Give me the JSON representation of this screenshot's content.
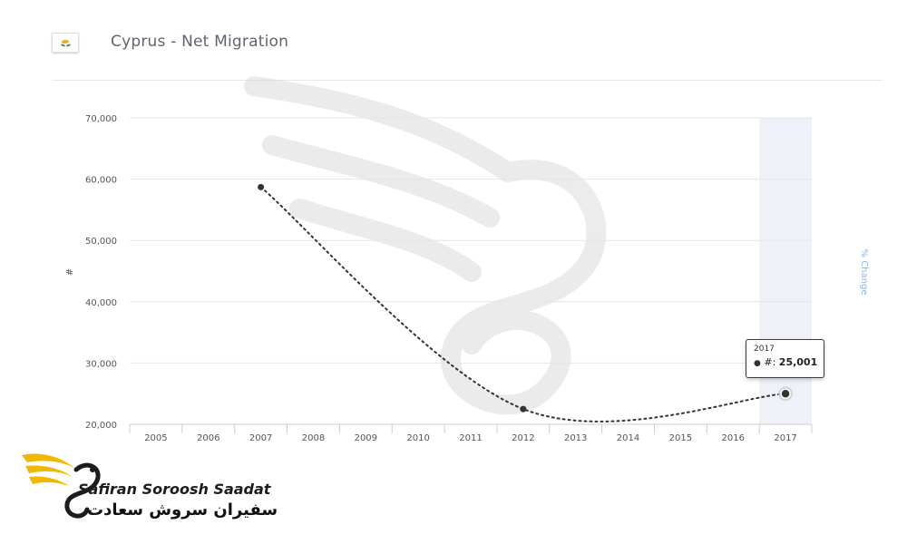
{
  "header": {
    "title": "Cyprus - Net Migration"
  },
  "brand": {
    "name_en": "Safiran Soroosh Saadat",
    "name_fa": "سفیران سروش سعادت"
  },
  "tooltip": {
    "year": "2017",
    "label": "#:",
    "value": "25,001"
  },
  "chart_data": {
    "type": "line",
    "title": "Cyprus - Net Migration",
    "xlabel": "",
    "ylabel": "#",
    "y2label": "% Change",
    "categories": [
      "2005",
      "2006",
      "2007",
      "2008",
      "2009",
      "2010",
      "2011",
      "2012",
      "2013",
      "2014",
      "2015",
      "2016",
      "2017"
    ],
    "yticks": [
      "20,000",
      "30,000",
      "40,000",
      "50,000",
      "60,000",
      "70,000"
    ],
    "ylim": [
      20000,
      70000
    ],
    "grid": true,
    "series": [
      {
        "points": [
          {
            "x": "2007",
            "y": 58700
          },
          {
            "x": "2012",
            "y": 22500
          },
          {
            "x": "2017",
            "y": 25001
          }
        ]
      }
    ],
    "highlight": "2017",
    "colors": {
      "line": "#333333",
      "grid": "#e6e6e6",
      "band": "#eef1f8",
      "y2label": "#8bb6e8"
    }
  }
}
